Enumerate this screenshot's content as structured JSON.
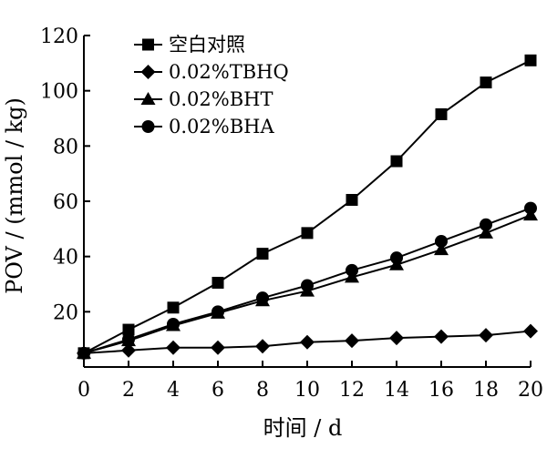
{
  "chart_data": {
    "type": "line",
    "xlabel": "时间 / d",
    "ylabel": "POV / (mmol / kg)",
    "xlim": [
      0,
      20
    ],
    "ylim": [
      0,
      120
    ],
    "xticks": [
      0,
      2,
      4,
      6,
      8,
      10,
      12,
      14,
      16,
      18,
      20
    ],
    "yticks": [
      20,
      40,
      60,
      80,
      100,
      120
    ],
    "grid": false,
    "legend_position": "top-left",
    "x": [
      0,
      2,
      4,
      6,
      8,
      10,
      12,
      14,
      16,
      18,
      20
    ],
    "series": [
      {
        "name": "空白对照",
        "marker": "square",
        "values": [
          5,
          13.5,
          21.5,
          30.5,
          41,
          48.5,
          60.5,
          74.5,
          91.5,
          103,
          111
        ]
      },
      {
        "name": "0.02%TBHQ",
        "marker": "diamond",
        "values": [
          5,
          6,
          7,
          7,
          7.5,
          9,
          9.5,
          10.5,
          11,
          11.5,
          13
        ]
      },
      {
        "name": "0.02%BHT",
        "marker": "triangle",
        "values": [
          5,
          9.5,
          15,
          19.5,
          24,
          27.5,
          32.5,
          37,
          42.5,
          48.5,
          55
        ]
      },
      {
        "name": "0.02%BHA",
        "marker": "circle",
        "values": [
          5,
          10,
          15.5,
          20,
          25,
          29.5,
          35,
          39.5,
          45.5,
          51.5,
          57.5
        ]
      }
    ]
  }
}
